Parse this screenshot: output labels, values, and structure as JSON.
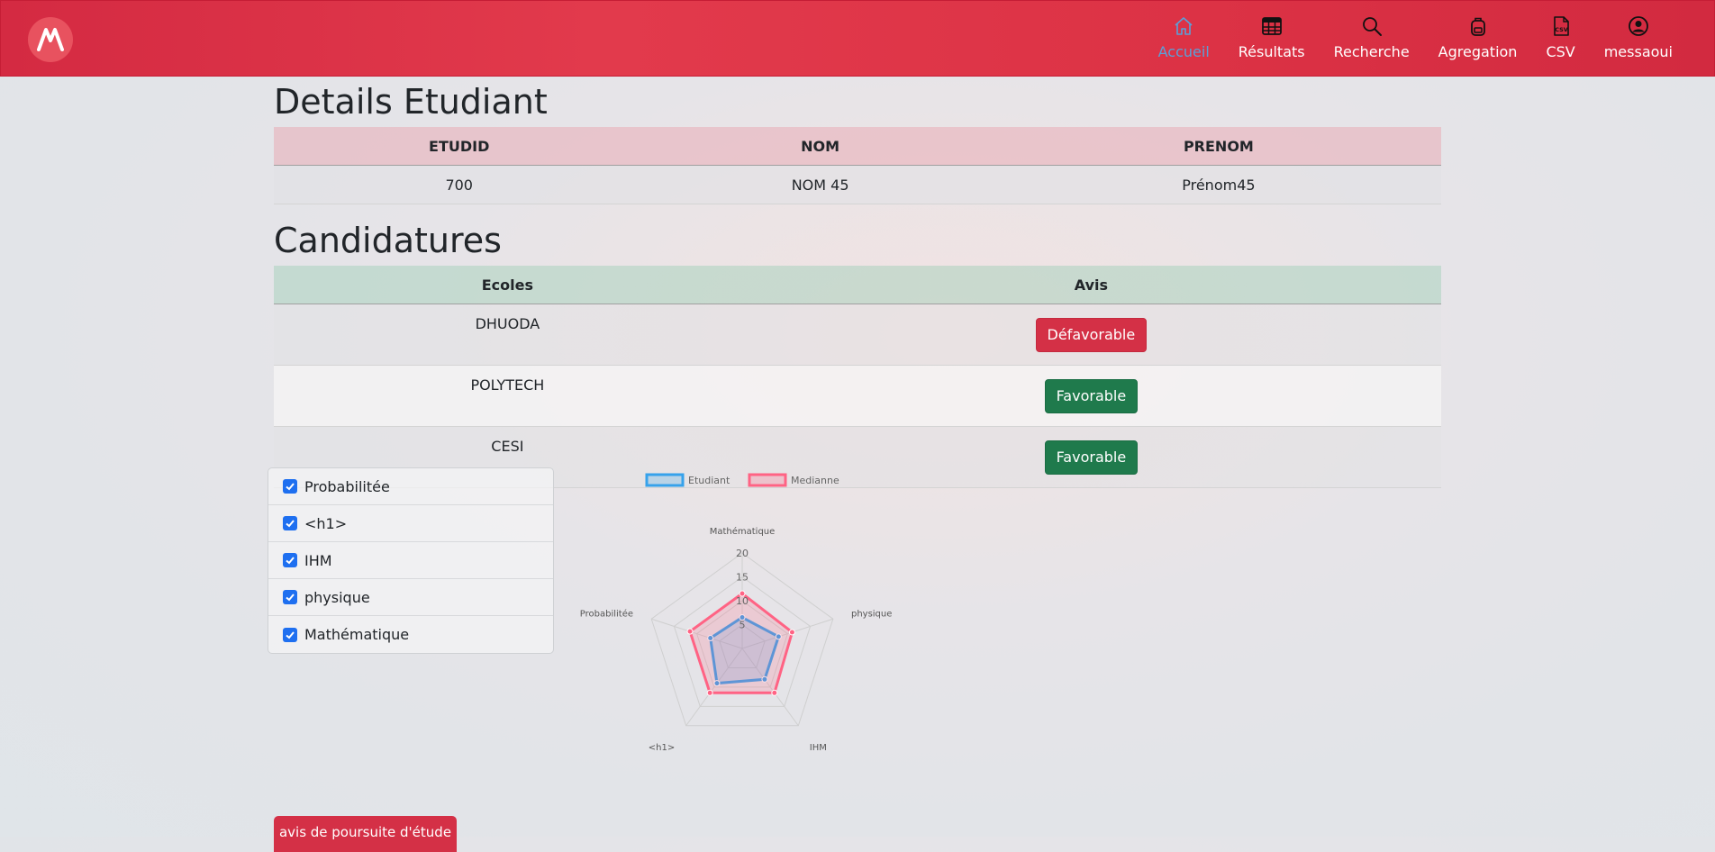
{
  "nav": {
    "items": [
      {
        "label": "Accueil",
        "icon": "home-icon",
        "active": true
      },
      {
        "label": "Résultats",
        "icon": "table-icon",
        "active": false
      },
      {
        "label": "Recherche",
        "icon": "search-icon",
        "active": false
      },
      {
        "label": "Agregation",
        "icon": "backpack-icon",
        "active": false
      },
      {
        "label": "CSV",
        "icon": "csv-file-icon",
        "active": false
      },
      {
        "label": "messaoui",
        "icon": "user-icon",
        "active": false
      }
    ]
  },
  "details": {
    "title": "Details Etudiant",
    "headers": [
      "ETUDID",
      "NOM",
      "PRENOM"
    ],
    "row": [
      "700",
      "NOM 45",
      "Prénom45"
    ]
  },
  "candidatures": {
    "title": "Candidatures",
    "headers": [
      "Ecoles",
      "Avis"
    ],
    "rows": [
      {
        "ecole": "DHUODA",
        "avis": "Défavorable"
      },
      {
        "ecole": "POLYTECH",
        "avis": "Favorable"
      },
      {
        "ecole": "CESI",
        "avis": "Favorable"
      }
    ]
  },
  "subjects": {
    "items": [
      {
        "label": "Probabilitée",
        "checked": true
      },
      {
        "label": "<h1>",
        "checked": true
      },
      {
        "label": "IHM",
        "checked": true
      },
      {
        "label": "physique",
        "checked": true
      },
      {
        "label": "Mathématique",
        "checked": true
      }
    ]
  },
  "chart_data": {
    "type": "radar",
    "axes": [
      "Mathématique",
      "physique",
      "IHM",
      "<h1>",
      "Probabilitée"
    ],
    "ticks": [
      5,
      10,
      15,
      20
    ],
    "range": [
      0,
      20
    ],
    "series": [
      {
        "name": "Etudiant",
        "values": [
          6.5,
          8,
          8,
          9,
          7
        ],
        "color": "#36a2eb"
      },
      {
        "name": "Medianne",
        "values": [
          11.5,
          11,
          11.5,
          11.5,
          11.5
        ],
        "color": "#ff6384"
      }
    ],
    "legend_position": "top"
  },
  "footer": {
    "button_label": "avis de poursuite d'étude"
  },
  "colors": {
    "brand": "#dc3245",
    "favorable": "#1f7a4c",
    "defavorable": "#d43046"
  }
}
